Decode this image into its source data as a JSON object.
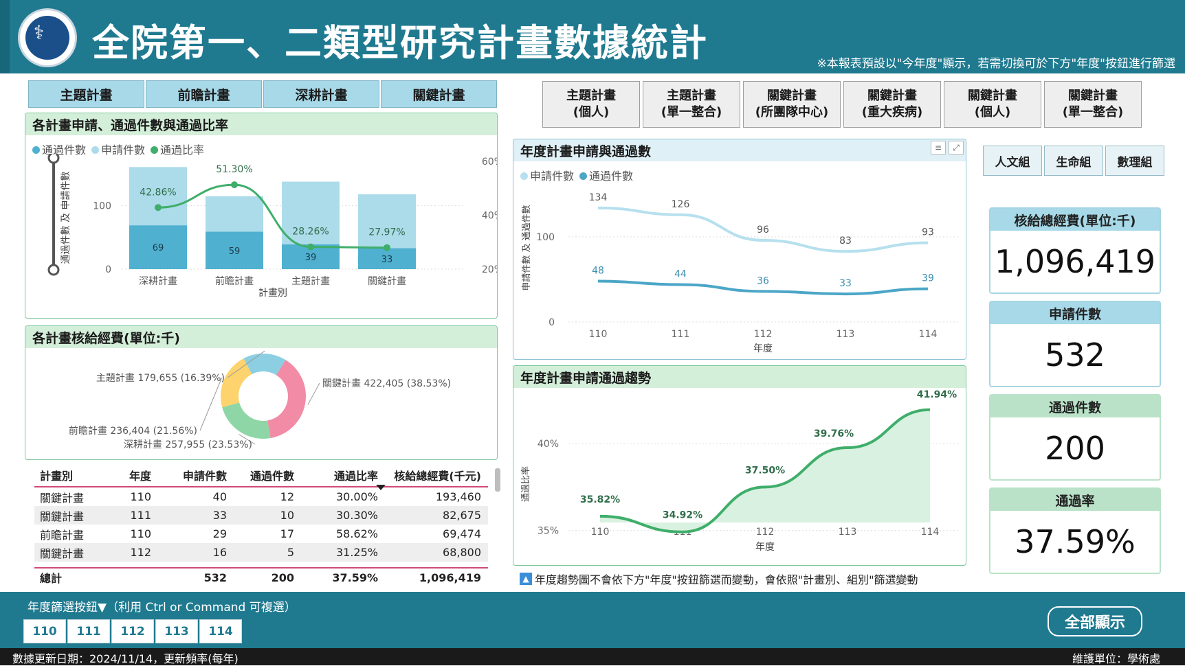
{
  "header": {
    "title": "全院第一、二類型研究計畫數據統計",
    "note": "※本報表預設以\"今年度\"顯示，若需切換可於下方\"年度\"按鈕進行篩選"
  },
  "plan_tabs": [
    "主題計畫",
    "前瞻計畫",
    "深耕計畫",
    "關鍵計畫"
  ],
  "grant_buttons": [
    {
      "l1": "主題計畫",
      "l2": "(個人)"
    },
    {
      "l1": "主題計畫",
      "l2": "(單一整合)"
    },
    {
      "l1": "關鍵計畫",
      "l2": "(所團隊中心)"
    },
    {
      "l1": "關鍵計畫",
      "l2": "(重大疾病)"
    },
    {
      "l1": "關鍵計畫",
      "l2": "(個人)"
    },
    {
      "l1": "關鍵計畫",
      "l2": "(單一整合)"
    }
  ],
  "group_buttons": [
    "人文組",
    "生命組",
    "數理組"
  ],
  "panels": {
    "p1_title": "各計畫申請、通過件數與通過比率",
    "p1_legend": [
      "通過件數",
      "申請件數",
      "通過比率"
    ],
    "p1_ylabel": "通過件數 及 申請件數",
    "p1_y2label": "通過比率",
    "p1_xlabel": "計畫別",
    "p2_title": "各計畫核給經費(單位:千)",
    "p3_title": "年度計畫申請與通過數",
    "p3_legend": [
      "申請件數",
      "通過件數"
    ],
    "p3_ylabel": "申請件數 及 通過件數",
    "p3_xlabel": "年度",
    "p4_title": "年度計畫申請通過趨勢",
    "p4_ylabel": "通過比率",
    "p4_xlabel": "年度"
  },
  "chart_data": [
    {
      "type": "bar",
      "title": "各計畫申請、通過件數與通過比率",
      "categories": [
        "深耕計畫",
        "前瞻計畫",
        "主題計畫",
        "關鍵計畫"
      ],
      "series": [
        {
          "name": "通過件數",
          "values": [
            69,
            59,
            39,
            33
          ]
        },
        {
          "name": "申請件數",
          "values": [
            161,
            115,
            138,
            118
          ]
        },
        {
          "name": "通過比率",
          "values": [
            42.86,
            51.3,
            28.26,
            27.97
          ]
        }
      ],
      "rate_labels": [
        "42.86%",
        "51.30%",
        "28.26%",
        "27.97%"
      ],
      "y_ticks": [
        "0",
        "100"
      ],
      "y2_ticks": [
        "20%",
        "40%",
        "60%"
      ],
      "ylim": [
        0,
        170
      ],
      "y2lim": [
        20,
        60
      ]
    },
    {
      "type": "pie",
      "title": "各計畫核給經費(單位:千)",
      "slices": [
        {
          "label": "關鍵計畫",
          "value": 422405,
          "text": "關鍵計畫 422,405 (38.53%)",
          "color": "#f28ba6"
        },
        {
          "label": "深耕計畫",
          "value": 257955,
          "text": "深耕計畫 257,955 (23.53%)",
          "color": "#8fd6a6"
        },
        {
          "label": "前瞻計畫",
          "value": 236404,
          "text": "前瞻計畫 236,404 (21.56%)",
          "color": "#fdd36d"
        },
        {
          "label": "主題計畫",
          "value": 179655,
          "text": "主題計畫 179,655 (16.39%)",
          "color": "#8ccfe3"
        }
      ]
    },
    {
      "type": "line",
      "title": "年度計畫申請與通過數",
      "x": [
        "110",
        "111",
        "112",
        "113",
        "114"
      ],
      "series": [
        {
          "name": "申請件數",
          "values": [
            134,
            126,
            96,
            83,
            93
          ],
          "color": "#b6e0ee"
        },
        {
          "name": "通過件數",
          "values": [
            48,
            44,
            36,
            33,
            39
          ],
          "color": "#4ba6c7"
        }
      ],
      "y_ticks": [
        "0",
        "100"
      ],
      "ylim": [
        0,
        150
      ]
    },
    {
      "type": "area",
      "title": "年度計畫申請通過趨勢",
      "x": [
        "110",
        "111",
        "112",
        "113",
        "114"
      ],
      "values": [
        35.82,
        34.92,
        37.5,
        39.76,
        41.94
      ],
      "labels": [
        "35.82%",
        "34.92%",
        "37.50%",
        "39.76%",
        "41.94%"
      ],
      "y_ticks": [
        "35%",
        "40%"
      ],
      "ylim": [
        34.2,
        42.8
      ]
    }
  ],
  "kpis": [
    {
      "title": "核給總經費(單位:千)",
      "value": "1,096,419"
    },
    {
      "title": "申請件數",
      "value": "532"
    },
    {
      "title": "通過件數",
      "value": "200"
    },
    {
      "title": "通過率",
      "value": "37.59%"
    }
  ],
  "table": {
    "headers": [
      "計畫別",
      "年度",
      "申請件數",
      "通過件數",
      "通過比率",
      "核給總經費(千元)"
    ],
    "rows": [
      [
        "關鍵計畫",
        "110",
        "40",
        "12",
        "30.00%",
        "193,460"
      ],
      [
        "關鍵計畫",
        "111",
        "33",
        "10",
        "30.30%",
        "82,675"
      ],
      [
        "前瞻計畫",
        "110",
        "29",
        "17",
        "58.62%",
        "69,474"
      ],
      [
        "關鍵計畫",
        "112",
        "16",
        "5",
        "31.25%",
        "68,800"
      ]
    ],
    "total": [
      "總計",
      "",
      "532",
      "200",
      "37.59%",
      "1,096,419"
    ]
  },
  "trend_note": "年度趨勢圖不會依下方\"年度\"按鈕篩選而變動，會依照\"計畫別、組別\"篩選變動",
  "footer": {
    "year_label": "年度篩選按鈕▼（利用 Ctrl or Command  可複選）",
    "years": [
      "110",
      "111",
      "112",
      "113",
      "114"
    ],
    "show_all": "全部顯示",
    "update_date": "數據更新日期：2024/11/14，更新頻率(每年)",
    "maintainer": "維護單位：學術處"
  },
  "colors": {
    "header": "#1f7a90",
    "bar_pass": "#4fb0d0",
    "bar_apply": "#acdbea",
    "rate_line": "#3fae6a",
    "trend_fill": "#d9f1e1"
  }
}
